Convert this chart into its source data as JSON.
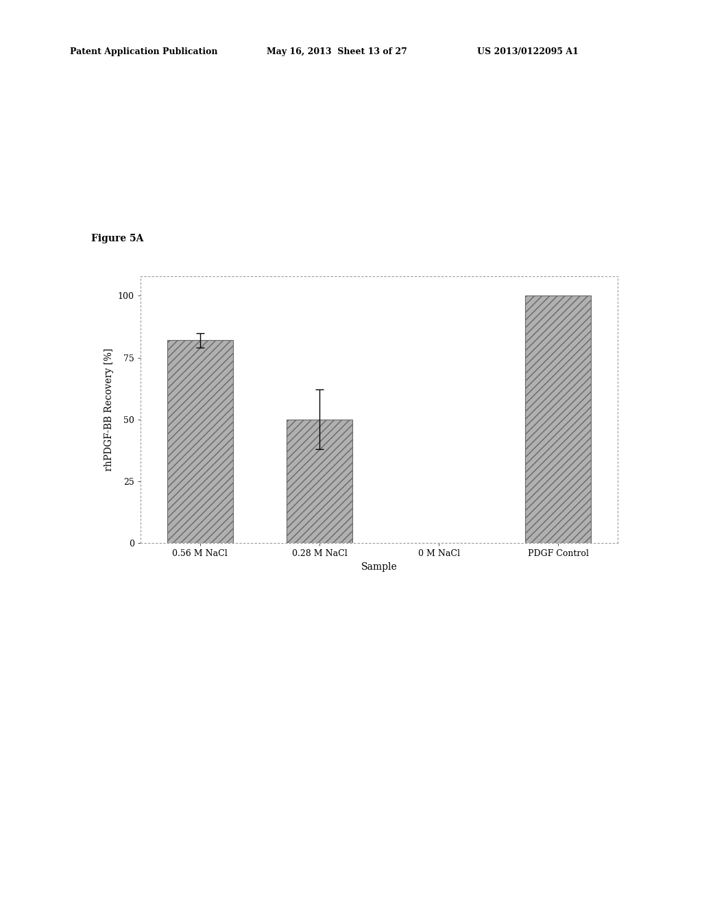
{
  "categories": [
    "0.56 M NaCl",
    "0.28 M NaCl",
    "0 M NaCl",
    "PDGF Control"
  ],
  "values": [
    82,
    50,
    0,
    100
  ],
  "errors": [
    3,
    12,
    0,
    0
  ],
  "bar_color": "#b0b0b0",
  "bar_hatch": "///",
  "xlabel": "Sample",
  "ylabel": "rhPDGF-BB Recovery [%]",
  "ylim": [
    0,
    108
  ],
  "yticks": [
    0,
    25,
    50,
    75,
    100
  ],
  "figure_label": "Figure 5A",
  "header_left": "Patent Application Publication",
  "header_mid": "May 16, 2013  Sheet 13 of 27",
  "header_right": "US 2013/0122095 A1",
  "background_color": "#ffffff",
  "plot_bg_color": "#ffffff",
  "bar_width": 0.55,
  "label_fontsize": 10,
  "axis_fontsize": 10,
  "tick_fontsize": 9,
  "header_fontsize": 9,
  "figure_label_fontsize": 10
}
